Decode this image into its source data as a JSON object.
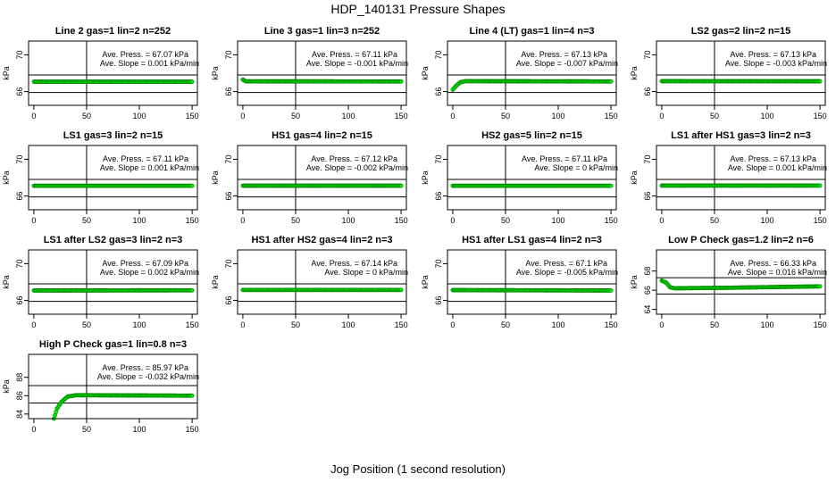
{
  "main_title": "HDP_140131  Pressure Shapes",
  "x_label": "Jog Position (1 second resolution)",
  "colors": {
    "points": "#00ee00",
    "point_edge": "#007700",
    "axes": "#000000"
  },
  "chart_data": [
    {
      "type": "scatter",
      "title": "Line 2 gas=1 lin=2 n=252",
      "ylabel": "kPa",
      "ann_press": "Ave. Press. = 67.07 kPa",
      "ann_slope": "Ave. Slope = 0.001  kPa/min",
      "xlim": [
        -5,
        155
      ],
      "ylim": [
        64.5,
        71.5
      ],
      "xticks": [
        0,
        50,
        100,
        150
      ],
      "yticks": [
        66,
        70
      ],
      "hlines": [
        65.9,
        67.8
      ],
      "vline": 50,
      "profile": [
        [
          0,
          67.07
        ],
        [
          150,
          67.07
        ]
      ]
    },
    {
      "type": "scatter",
      "title": "Line 3 gas=1 lin=3 n=252",
      "ylabel": "kPa",
      "ann_press": "Ave. Press. = 67.11 kPa",
      "ann_slope": "Ave. Slope = -0.001  kPa/min",
      "xlim": [
        -5,
        155
      ],
      "ylim": [
        64.5,
        71.5
      ],
      "xticks": [
        0,
        50,
        100,
        150
      ],
      "yticks": [
        66,
        70
      ],
      "hlines": [
        65.9,
        67.8
      ],
      "vline": 50,
      "profile": [
        [
          0,
          67.3
        ],
        [
          3,
          67.11
        ],
        [
          150,
          67.1
        ]
      ]
    },
    {
      "type": "scatter",
      "title": "Line 4 (LT) gas=1 lin=4 n=3",
      "ylabel": "kPa",
      "ann_press": "Ave. Press. = 67.13 kPa",
      "ann_slope": "Ave. Slope = -0.007  kPa/min",
      "xlim": [
        -5,
        155
      ],
      "ylim": [
        64.5,
        71.5
      ],
      "xticks": [
        0,
        50,
        100,
        150
      ],
      "yticks": [
        66,
        70
      ],
      "hlines": [
        65.9,
        67.8
      ],
      "vline": 50,
      "profile": [
        [
          0,
          66.2
        ],
        [
          3,
          66.6
        ],
        [
          7,
          67.0
        ],
        [
          12,
          67.13
        ],
        [
          150,
          67.1
        ]
      ]
    },
    {
      "type": "scatter",
      "title": "LS2 gas=2 lin=2 n=15",
      "ylabel": "kPa",
      "ann_press": "Ave. Press. = 67.13 kPa",
      "ann_slope": "Ave. Slope = -0.003  kPa/min",
      "xlim": [
        -5,
        155
      ],
      "ylim": [
        64.5,
        71.5
      ],
      "xticks": [
        0,
        50,
        100,
        150
      ],
      "yticks": [
        66,
        70
      ],
      "hlines": [
        65.9,
        67.8
      ],
      "vline": 50,
      "profile": [
        [
          0,
          67.13
        ],
        [
          150,
          67.12
        ]
      ]
    },
    {
      "type": "scatter",
      "title": "LS1 gas=3 lin=2 n=15",
      "ylabel": "kPa",
      "ann_press": "Ave. Press. = 67.11 kPa",
      "ann_slope": "Ave. Slope = 0.001  kPa/min",
      "xlim": [
        -5,
        155
      ],
      "ylim": [
        64.5,
        71.5
      ],
      "xticks": [
        0,
        50,
        100,
        150
      ],
      "yticks": [
        66,
        70
      ],
      "hlines": [
        65.9,
        67.8
      ],
      "vline": 50,
      "profile": [
        [
          0,
          67.11
        ],
        [
          150,
          67.11
        ]
      ]
    },
    {
      "type": "scatter",
      "title": "HS1 gas=4 lin=2 n=15",
      "ylabel": "kPa",
      "ann_press": "Ave. Press. = 67.12 kPa",
      "ann_slope": "Ave. Slope = -0.002  kPa/min",
      "xlim": [
        -5,
        155
      ],
      "ylim": [
        64.5,
        71.5
      ],
      "xticks": [
        0,
        50,
        100,
        150
      ],
      "yticks": [
        66,
        70
      ],
      "hlines": [
        65.9,
        67.8
      ],
      "vline": 50,
      "profile": [
        [
          0,
          67.12
        ],
        [
          150,
          67.12
        ]
      ]
    },
    {
      "type": "scatter",
      "title": "HS2 gas=5 lin=2 n=15",
      "ylabel": "kPa",
      "ann_press": "Ave. Press. = 67.11 kPa",
      "ann_slope": "Ave. Slope = 0  kPa/min",
      "xlim": [
        -5,
        155
      ],
      "ylim": [
        64.5,
        71.5
      ],
      "xticks": [
        0,
        50,
        100,
        150
      ],
      "yticks": [
        66,
        70
      ],
      "hlines": [
        65.9,
        67.8
      ],
      "vline": 50,
      "profile": [
        [
          0,
          67.11
        ],
        [
          150,
          67.11
        ]
      ]
    },
    {
      "type": "scatter",
      "title": "LS1 after HS1 gas=3 lin=2 n=3",
      "ylabel": "kPa",
      "ann_press": "Ave. Press. = 67.13 kPa",
      "ann_slope": "Ave. Slope = 0.001  kPa/min",
      "xlim": [
        -5,
        155
      ],
      "ylim": [
        64.5,
        71.5
      ],
      "xticks": [
        0,
        50,
        100,
        150
      ],
      "yticks": [
        66,
        70
      ],
      "hlines": [
        65.9,
        67.8
      ],
      "vline": 50,
      "profile": [
        [
          0,
          67.13
        ],
        [
          150,
          67.13
        ]
      ]
    },
    {
      "type": "scatter",
      "title": "LS1 after LS2 gas=3 lin=2 n=3",
      "ylabel": "kPa",
      "ann_press": "Ave. Press. = 67.09 kPa",
      "ann_slope": "Ave. Slope = 0.002  kPa/min",
      "xlim": [
        -5,
        155
      ],
      "ylim": [
        64.5,
        71.5
      ],
      "xticks": [
        0,
        50,
        100,
        150
      ],
      "yticks": [
        66,
        70
      ],
      "hlines": [
        65.9,
        67.8
      ],
      "vline": 50,
      "profile": [
        [
          0,
          67.08
        ],
        [
          150,
          67.1
        ]
      ]
    },
    {
      "type": "scatter",
      "title": "HS1 after HS2 gas=4 lin=2 n=3",
      "ylabel": "kPa",
      "ann_press": "Ave. Press. = 67.14 kPa",
      "ann_slope": "Ave. Slope = 0  kPa/min",
      "xlim": [
        -5,
        155
      ],
      "ylim": [
        64.5,
        71.5
      ],
      "xticks": [
        0,
        50,
        100,
        150
      ],
      "yticks": [
        66,
        70
      ],
      "hlines": [
        65.9,
        67.8
      ],
      "vline": 50,
      "profile": [
        [
          0,
          67.14
        ],
        [
          150,
          67.14
        ]
      ]
    },
    {
      "type": "scatter",
      "title": "HS1 after LS1 gas=4 lin=2 n=3",
      "ylabel": "kPa",
      "ann_press": "Ave. Press. = 67.1  kPa",
      "ann_slope": "Ave. Slope = -0.005  kPa/min",
      "xlim": [
        -5,
        155
      ],
      "ylim": [
        64.5,
        71.5
      ],
      "xticks": [
        0,
        50,
        100,
        150
      ],
      "yticks": [
        66,
        70
      ],
      "hlines": [
        65.9,
        67.8
      ],
      "vline": 50,
      "profile": [
        [
          0,
          67.12
        ],
        [
          150,
          67.08
        ]
      ]
    },
    {
      "type": "scatter",
      "title": "Low P Check gas=1.2 lin=2 n=6",
      "ylabel": "kPa",
      "ann_press": "Ave. Press. = 66.33 kPa",
      "ann_slope": "Ave. Slope = 0.016  kPa/min",
      "xlim": [
        -5,
        155
      ],
      "ylim": [
        63.5,
        70.2
      ],
      "xticks": [
        0,
        50,
        100,
        150
      ],
      "yticks": [
        64,
        66,
        68
      ],
      "hlines": [
        65.6,
        67.3
      ],
      "vline": 50,
      "profile": [
        [
          0,
          67.0
        ],
        [
          4,
          66.8
        ],
        [
          8,
          66.3
        ],
        [
          12,
          66.2
        ],
        [
          60,
          66.25
        ],
        [
          150,
          66.4
        ]
      ]
    },
    {
      "type": "scatter",
      "title": "High P Check gas=1 lin=0.8 n=3",
      "ylabel": "kPa",
      "ann_press": "Ave. Press. = 85.97 kPa",
      "ann_slope": "Ave. Slope = -0.032  kPa/min",
      "xlim": [
        -5,
        155
      ],
      "ylim": [
        83.5,
        90.5
      ],
      "xticks": [
        0,
        50,
        100,
        150
      ],
      "yticks": [
        84,
        86,
        88
      ],
      "hlines": [
        85.2,
        87.1
      ],
      "vline": 50,
      "profile": [
        [
          19,
          83.5
        ],
        [
          22,
          84.6
        ],
        [
          26,
          85.3
        ],
        [
          32,
          85.9
        ],
        [
          40,
          86.05
        ],
        [
          150,
          86.0
        ]
      ]
    }
  ]
}
